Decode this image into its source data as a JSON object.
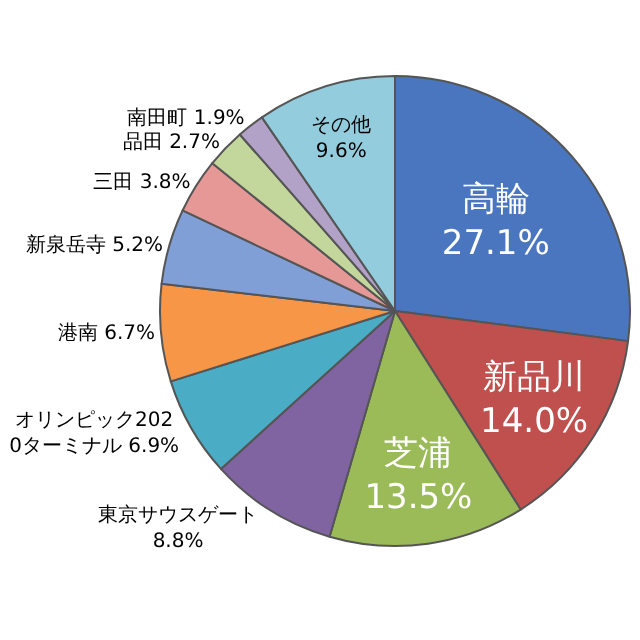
{
  "chart_data": {
    "type": "pie",
    "categories": [
      "高輪",
      "新品川",
      "芝浦",
      "東京サウスゲート",
      "オリンピック2020ターミナル",
      "港南",
      "新泉岳寺",
      "三田",
      "品田",
      "南田町",
      "その他"
    ],
    "values": [
      27.1,
      14.0,
      13.5,
      8.8,
      6.9,
      6.7,
      5.2,
      3.8,
      2.7,
      1.9,
      9.6
    ],
    "value_labels": [
      "27.1%",
      "14.0%",
      "13.5%",
      "8.8%",
      "6.9%",
      "6.7%",
      "5.2%",
      "3.8%",
      "2.7%",
      "1.9%",
      "9.6%"
    ],
    "colors": [
      "#4a76c0",
      "#c0504d",
      "#9bbb59",
      "#8064a2",
      "#4bacc6",
      "#f79646",
      "#7f9fd6",
      "#e59896",
      "#c3d69b",
      "#b3a2c7",
      "#93cddd"
    ],
    "legend": false
  }
}
